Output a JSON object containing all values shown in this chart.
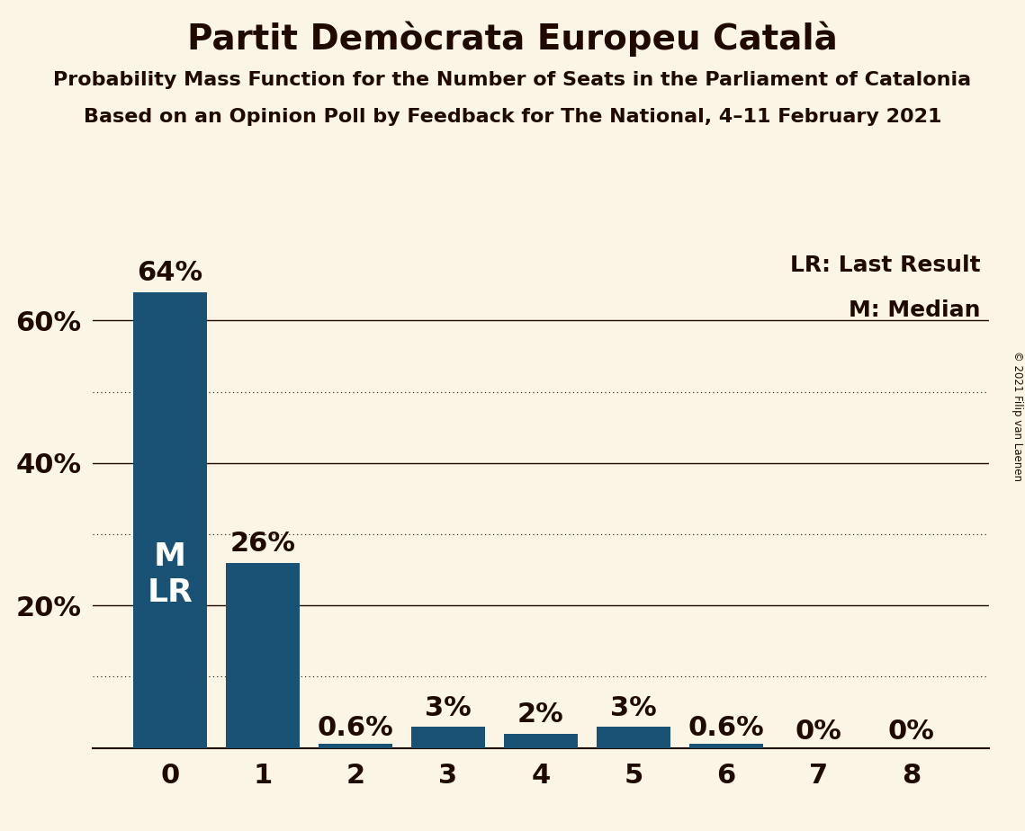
{
  "title": "Partit Demòcrata Europeu Català",
  "subtitle1": "Probability Mass Function for the Number of Seats in the Parliament of Catalonia",
  "subtitle2": "Based on an Opinion Poll by Feedback for The National, 4–11 February 2021",
  "copyright": "© 2021 Filip van Laenen",
  "categories": [
    0,
    1,
    2,
    3,
    4,
    5,
    6,
    7,
    8
  ],
  "values": [
    64,
    26,
    0.6,
    3,
    2,
    3,
    0.6,
    0,
    0
  ],
  "bar_color": "#1a5276",
  "background_color": "#faf5e4",
  "text_color": "#200a00",
  "label_inside_bar": {
    "bar_index": 0,
    "lines": [
      "M",
      "LR"
    ]
  },
  "legend_text": [
    "LR: Last Result",
    "M: Median"
  ],
  "yticks_solid": [
    20,
    40,
    60
  ],
  "yticks_dotted": [
    10,
    30,
    50
  ],
  "ylim": [
    0,
    70
  ],
  "title_fontsize": 28,
  "subtitle_fontsize": 16,
  "tick_label_fontsize": 22,
  "bar_label_fontsize": 22,
  "inside_label_fontsize": 26,
  "legend_fontsize": 18
}
